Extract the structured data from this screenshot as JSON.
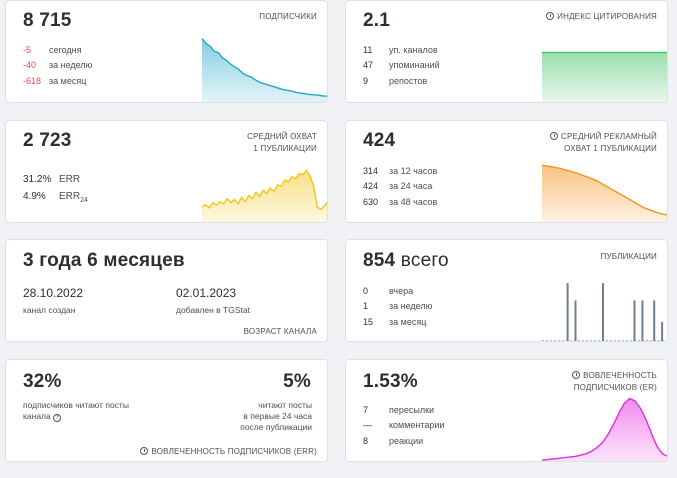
{
  "subscribers": {
    "value": "8 715",
    "title": "ПОДПИСЧИКИ",
    "rows": [
      {
        "num": "-5",
        "label": "сегодня"
      },
      {
        "num": "-40",
        "label": "за неделю"
      },
      {
        "num": "-618",
        "label": "за месяц"
      }
    ],
    "color": "#22a6c9"
  },
  "citation": {
    "value": "2.1",
    "title": "ИНДЕКС ЦИТИРОВАНИЯ",
    "rows": [
      {
        "num": "11",
        "label": "уп. каналов"
      },
      {
        "num": "47",
        "label": "упоминаний"
      },
      {
        "num": "9",
        "label": "репостов"
      }
    ],
    "color": "#4cc36a"
  },
  "reach": {
    "value": "2 723",
    "title_line1": "СРЕДНИЙ ОХВАТ",
    "title_line2": "1 ПУБЛИКАЦИИ",
    "err_value": "31.2%",
    "err_label": "ERR",
    "err24_value": "4.9%",
    "err24_label": "ERR",
    "err24_sub": "24",
    "color": "#f2c51d"
  },
  "ad_reach": {
    "value": "424",
    "title_line1": "СРЕДНИЙ РЕКЛАМНЫЙ",
    "title_line2": "ОХВАТ 1 ПУБЛИКАЦИИ",
    "rows": [
      {
        "num": "314",
        "label": "за 12 часов"
      },
      {
        "num": "424",
        "label": "за 24 часа"
      },
      {
        "num": "630",
        "label": "за 48 часов"
      }
    ],
    "color": "#f5931e"
  },
  "age": {
    "value": "3 года 6 месяцев",
    "created_date": "28.10.2022",
    "created_label": "канал создан",
    "added_date": "02.01.2023",
    "added_label": "добавлен в TGStat",
    "title": "ВОЗРАСТ КАНАЛА"
  },
  "publications": {
    "value": "854",
    "value_suffix": " всего",
    "title": "ПУБЛИКАЦИИ",
    "rows": [
      {
        "num": "0",
        "label": "вчера"
      },
      {
        "num": "1",
        "label": "за неделю"
      },
      {
        "num": "15",
        "label": "за месяц"
      }
    ],
    "color": "#6f7f8c"
  },
  "err": {
    "left_value": "32%",
    "left_text_line1": "подписчиков читают посты",
    "left_text_line2": "канала",
    "right_value": "5%",
    "right_text_line1": "читают посты",
    "right_text_line2": "в первые 24 часа",
    "right_text_line3": "после публикации",
    "title": "ВОВЛЕЧЕННОСТЬ ПОДПИСЧИКОВ (ERR)"
  },
  "er": {
    "value": "1.53%",
    "title_line1": "ВОВЛЕЧЕННОСТЬ",
    "title_line2": "ПОДПИСЧИКОВ (ER)",
    "rows": [
      {
        "num": "7",
        "label": "пересылки"
      },
      {
        "num": "—",
        "label": "комментарии"
      },
      {
        "num": "8",
        "label": "реакции"
      }
    ],
    "color": "#e62be0"
  },
  "chart_data": [
    {
      "type": "area",
      "name": "subscribers-trend",
      "values": [
        100,
        92,
        88,
        80,
        78,
        70,
        66,
        60,
        56,
        52,
        46,
        42,
        40,
        36,
        32,
        30,
        28,
        26,
        24,
        22,
        20,
        19,
        18,
        16,
        15,
        14,
        13,
        12,
        12,
        11,
        10,
        10
      ]
    },
    {
      "type": "area",
      "name": "citation-trend",
      "values": [
        100,
        100,
        100,
        100,
        100,
        100,
        100,
        100
      ]
    },
    {
      "type": "area",
      "name": "reach-trend",
      "values": [
        30,
        34,
        28,
        38,
        33,
        40,
        36,
        46,
        38,
        44,
        36,
        48,
        40,
        52,
        46,
        58,
        50,
        62,
        56,
        66,
        60,
        72,
        70,
        82,
        78,
        88,
        84,
        94,
        92,
        100,
        90,
        70,
        30,
        25,
        32,
        40
      ]
    },
    {
      "type": "area",
      "name": "ad-reach-trend",
      "values": [
        100,
        99,
        97,
        95,
        92,
        89,
        86,
        82,
        78,
        74,
        68,
        62,
        56,
        50,
        44,
        38,
        32,
        26,
        22,
        18,
        15,
        13
      ]
    },
    {
      "type": "bar",
      "name": "publications-trend",
      "values": [
        0,
        0,
        0,
        0,
        0,
        0,
        1,
        0,
        0.7,
        0,
        0,
        0,
        0,
        0,
        0,
        1,
        0,
        0,
        0,
        0,
        0,
        0,
        0,
        0.7,
        0,
        0.7,
        0,
        0,
        0.7,
        0,
        0.33,
        0
      ]
    },
    {
      "type": "area",
      "name": "er-trend",
      "values": [
        2,
        3,
        4,
        5,
        6,
        7,
        8,
        10,
        12,
        16,
        22,
        30,
        42,
        58,
        76,
        92,
        100,
        96,
        84,
        66,
        44,
        24,
        12,
        8
      ]
    }
  ]
}
